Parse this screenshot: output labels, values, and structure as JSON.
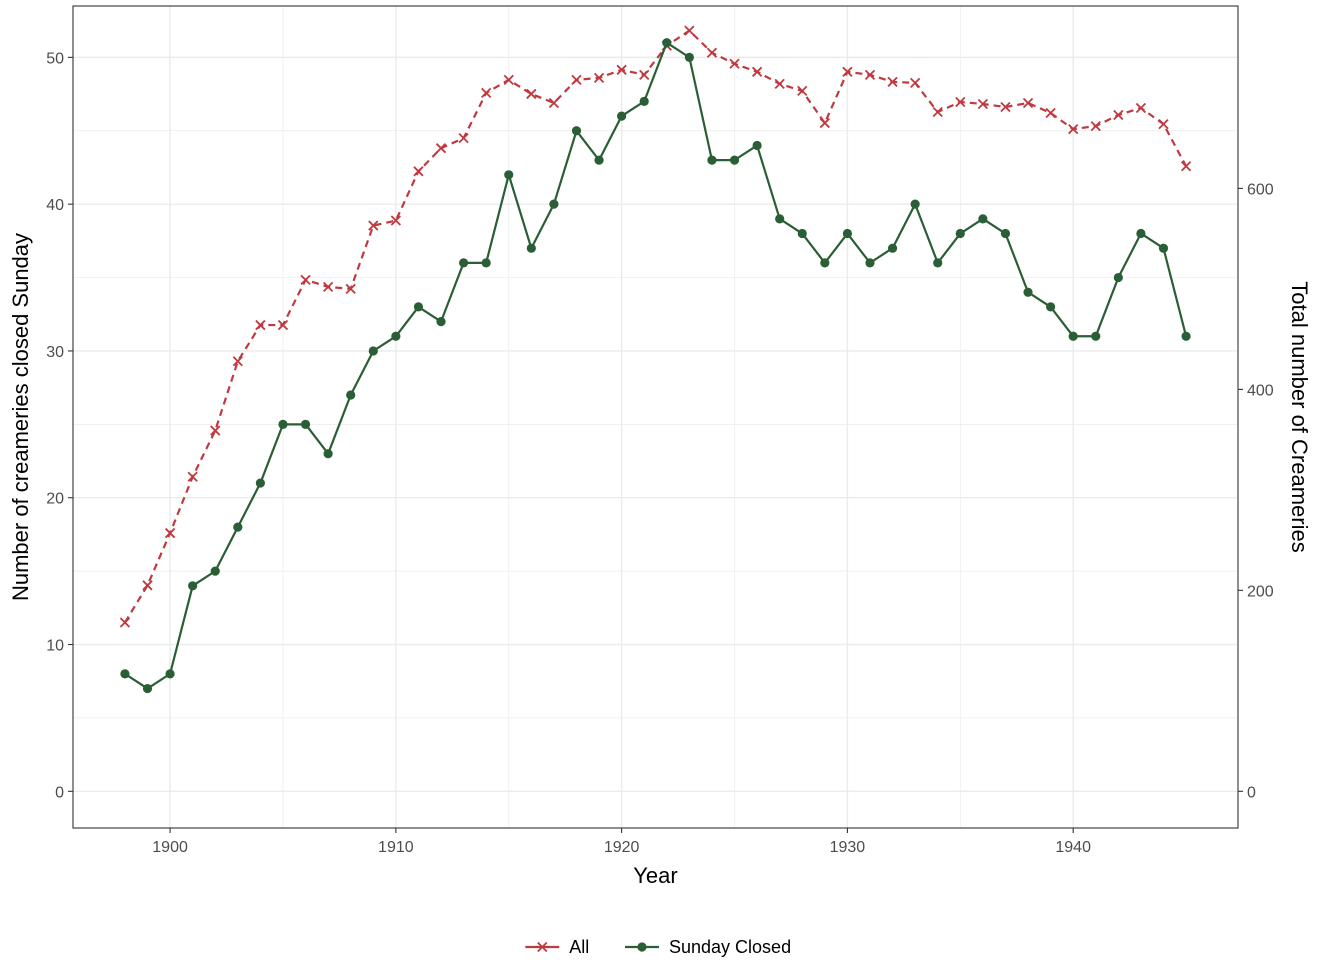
{
  "chart_data": {
    "type": "line",
    "xlabel": "Year",
    "ylabel": "Number of creameries closed Sunday",
    "y2label": "Total number of Creameries",
    "xlim": [
      1895.7,
      1947.3
    ],
    "ylim": [
      -2.5,
      53.5
    ],
    "y2lim": [
      -36.5,
      781.5
    ],
    "x_ticks": [
      1900,
      1910,
      1920,
      1930,
      1940
    ],
    "y_ticks": [
      0,
      10,
      20,
      30,
      40,
      50
    ],
    "y2_ticks": [
      0,
      200,
      400,
      600
    ],
    "grid": true,
    "legend_position": "bottom",
    "x": [
      1898,
      1899,
      1900,
      1901,
      1902,
      1903,
      1904,
      1905,
      1906,
      1907,
      1908,
      1909,
      1910,
      1911,
      1912,
      1913,
      1914,
      1915,
      1916,
      1917,
      1918,
      1919,
      1920,
      1921,
      1922,
      1923,
      1924,
      1925,
      1926,
      1927,
      1928,
      1929,
      1930,
      1931,
      1932,
      1933,
      1934,
      1935,
      1936,
      1937,
      1938,
      1939,
      1940,
      1941,
      1942,
      1943,
      1944,
      1945
    ],
    "series": [
      {
        "name": "All",
        "axis": "right",
        "color": "#c0393f",
        "marker": "x",
        "line_style": "dashed",
        "values": [
          168,
          205,
          257,
          313,
          359,
          428,
          464,
          464,
          509,
          502,
          500,
          563,
          568,
          617,
          640,
          650,
          695,
          708,
          694,
          685,
          708,
          710,
          718,
          713,
          742,
          757,
          735,
          724,
          716,
          704,
          697,
          665,
          716,
          713,
          706,
          705,
          676,
          686,
          684,
          681,
          685,
          675,
          659,
          662,
          673,
          680,
          664,
          622
        ]
      },
      {
        "name": "Sunday Closed",
        "axis": "left",
        "color": "#2a5e35",
        "marker": "circle",
        "line_style": "solid",
        "values": [
          8,
          7,
          8,
          14,
          15,
          18,
          21,
          25,
          25,
          23,
          27,
          30,
          31,
          33,
          32,
          36,
          36,
          42,
          37,
          40,
          45,
          43,
          46,
          47,
          51,
          50,
          43,
          43,
          44,
          39,
          38,
          36,
          38,
          36,
          37,
          40,
          36,
          38,
          39,
          38,
          34,
          33,
          31,
          31,
          35,
          38,
          37,
          31
        ]
      }
    ]
  },
  "colors": {
    "grid": "#ebebeb",
    "panel_border": "#333333",
    "tick_label": "#4d4d4d",
    "axis_title": "#000000"
  }
}
